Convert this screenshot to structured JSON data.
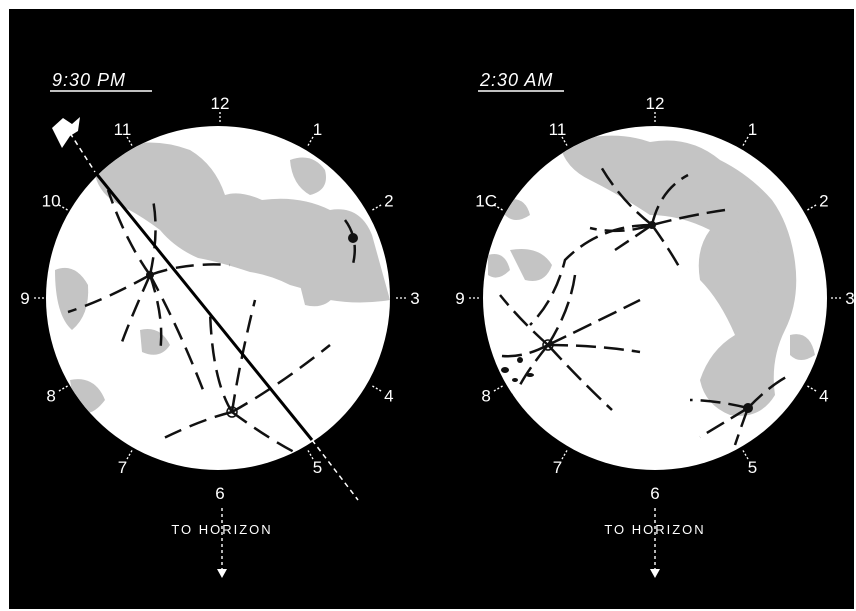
{
  "colors": {
    "background": "#000000",
    "moon": "#ffffff",
    "maria": "#c4c4c4",
    "rays": "#111111"
  },
  "panels": [
    {
      "time_label": "9:30 PM",
      "clock_labels": [
        "12",
        "1",
        "2",
        "3",
        "4",
        "5",
        "6",
        "7",
        "8",
        "9",
        "10",
        "11"
      ],
      "horizon_label": "TO HORIZON",
      "has_spacecraft_track": true
    },
    {
      "time_label": "2:30 AM",
      "clock_labels": [
        "12",
        "1",
        "2",
        "3",
        "4",
        "5",
        "6",
        "7",
        "8",
        "9",
        "1C",
        "11"
      ],
      "horizon_label": "TO HORIZON",
      "has_spacecraft_track": false
    }
  ],
  "icons": {
    "spacecraft": "satellite-icon",
    "arrow": "arrow-down-icon"
  }
}
